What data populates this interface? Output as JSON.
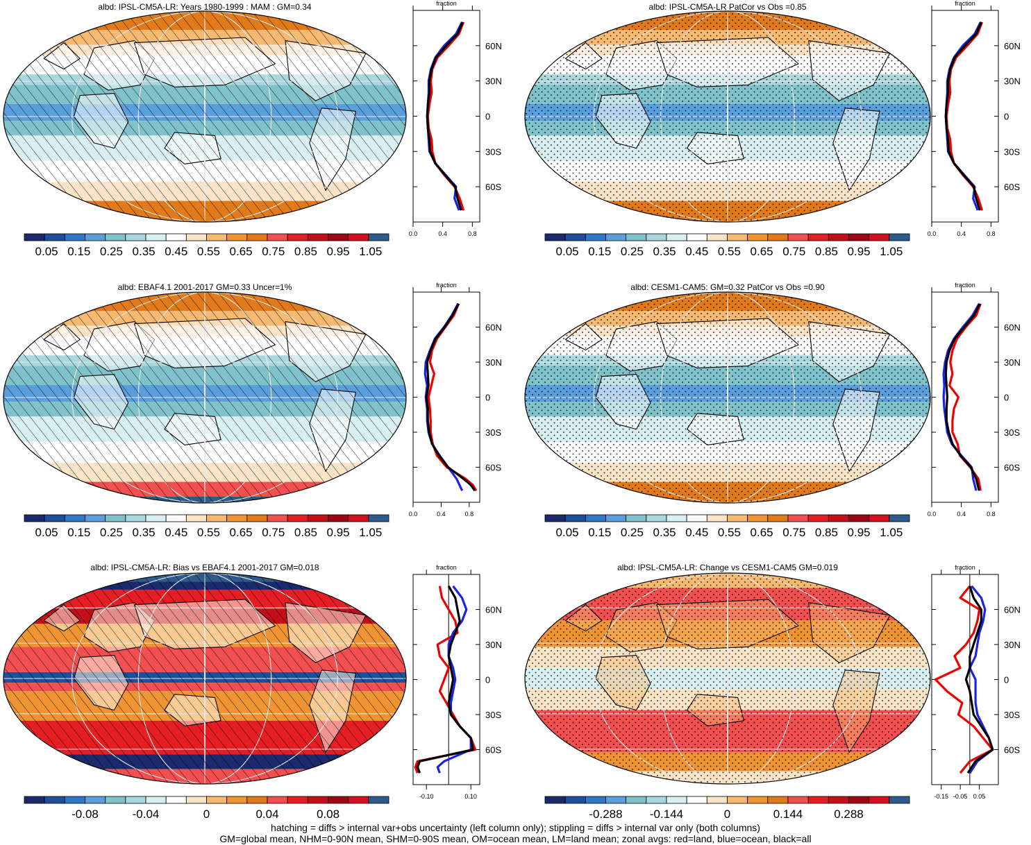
{
  "colors": {
    "scale": [
      "#1a2a6c",
      "#1f4e9a",
      "#2f78c8",
      "#5a9fdc",
      "#7fc2c9",
      "#a8d8dd",
      "#d9f0f2",
      "#ffffff",
      "#fbe3c6",
      "#f6b972",
      "#ef9432",
      "#e07a1a",
      "#f25050",
      "#e51e24",
      "#c40f18",
      "#9e0614",
      "#d41020",
      "#2c5b8c"
    ],
    "red_line": "#ee0000",
    "blue_line": "#1a22e6",
    "black_line": "#000000"
  },
  "footer": {
    "line1": "hatching = diffs > internal var+obs uncertainty (left column only); stippling = diffs > internal var only (both columns)",
    "line2": "GM=global mean, NHM=0-90N mean, SHM=0-90S mean, OM=ocean mean, LM=land mean; zonal avgs: red=land, blue=ocean, black=all"
  },
  "chart_data": [
    {
      "type": "heatmap",
      "title": "albd: IPSL-CM5A-LR: Years 1980-1999 : MAM : GM=0.34",
      "pattern": "hatching",
      "colorbar_labels": [
        "0.05",
        "0.15",
        "0.25",
        "0.35",
        "0.45",
        "0.55",
        "0.65",
        "0.75",
        "0.85",
        "0.95",
        "1.05"
      ],
      "lat_ticks": [
        "60N",
        "30N",
        "0",
        "30S",
        "60S"
      ],
      "zonal_profile": {
        "xlabel": "fraction",
        "x_ticks": [
          "0.0",
          "0.4",
          "0.8"
        ],
        "xlim": [
          0.0,
          0.9
        ],
        "lat": [
          80,
          70,
          60,
          50,
          40,
          30,
          20,
          10,
          0,
          -10,
          -20,
          -30,
          -40,
          -50,
          -60,
          -70,
          -80
        ],
        "land": [
          0.68,
          0.62,
          0.48,
          0.33,
          0.26,
          0.24,
          0.25,
          0.22,
          0.2,
          0.21,
          0.25,
          0.26,
          0.3,
          0.42,
          0.56,
          0.63,
          0.68
        ],
        "ocean": [
          0.66,
          0.58,
          0.42,
          0.3,
          0.24,
          0.21,
          0.21,
          0.2,
          0.19,
          0.2,
          0.21,
          0.22,
          0.3,
          0.44,
          0.58,
          0.56,
          0.62
        ],
        "all": [
          0.67,
          0.6,
          0.45,
          0.31,
          0.25,
          0.22,
          0.22,
          0.2,
          0.19,
          0.2,
          0.22,
          0.23,
          0.3,
          0.43,
          0.57,
          0.6,
          0.65
        ]
      }
    },
    {
      "type": "heatmap",
      "title": "albd: IPSL-CM5A-LR PatCor vs Obs =0.85",
      "pattern": "stippling",
      "colorbar_labels": [
        "0.05",
        "0.15",
        "0.25",
        "0.35",
        "0.45",
        "0.55",
        "0.65",
        "0.75",
        "0.85",
        "0.95",
        "1.05"
      ],
      "lat_ticks": [
        "60N",
        "30N",
        "0",
        "30S",
        "60S"
      ],
      "zonal_profile": {
        "xlabel": "fraction",
        "x_ticks": [
          "0.0",
          "0.4",
          "0.8"
        ],
        "xlim": [
          0.0,
          0.9
        ],
        "lat": [
          80,
          70,
          60,
          50,
          40,
          30,
          20,
          10,
          0,
          -10,
          -20,
          -30,
          -40,
          -50,
          -60,
          -70,
          -80
        ],
        "land": [
          0.68,
          0.62,
          0.48,
          0.33,
          0.26,
          0.24,
          0.25,
          0.22,
          0.2,
          0.21,
          0.25,
          0.26,
          0.3,
          0.42,
          0.56,
          0.63,
          0.68
        ],
        "ocean": [
          0.66,
          0.58,
          0.42,
          0.3,
          0.24,
          0.21,
          0.21,
          0.2,
          0.19,
          0.2,
          0.21,
          0.22,
          0.3,
          0.44,
          0.58,
          0.56,
          0.62
        ],
        "all": [
          0.67,
          0.6,
          0.45,
          0.31,
          0.25,
          0.22,
          0.22,
          0.2,
          0.19,
          0.2,
          0.22,
          0.23,
          0.3,
          0.43,
          0.57,
          0.6,
          0.65
        ]
      }
    },
    {
      "type": "heatmap",
      "title": "albd: EBAF4.1 2001-2017 GM=0.33 Uncer=1%",
      "pattern": "hatching",
      "colorbar_labels": [
        "0.05",
        "0.15",
        "0.25",
        "0.35",
        "0.45",
        "0.55",
        "0.65",
        "0.75",
        "0.85",
        "0.95",
        "1.05"
      ],
      "lat_ticks": [
        "60N",
        "30N",
        "0",
        "30S",
        "60S"
      ],
      "zonal_profile": {
        "xlabel": "fraction",
        "x_ticks": [
          "0.0",
          "0.4",
          "0.8"
        ],
        "xlim": [
          0.0,
          0.95
        ],
        "lat": [
          80,
          70,
          60,
          50,
          40,
          30,
          20,
          10,
          0,
          -10,
          -20,
          -30,
          -40,
          -50,
          -60,
          -70,
          -75,
          -80
        ],
        "land": [
          0.65,
          0.58,
          0.46,
          0.34,
          0.27,
          0.24,
          0.3,
          0.26,
          0.22,
          0.24,
          0.25,
          0.25,
          0.28,
          0.34,
          0.48,
          0.75,
          0.85,
          0.9
        ],
        "ocean": [
          0.64,
          0.55,
          0.44,
          0.31,
          0.24,
          0.18,
          0.17,
          0.2,
          0.18,
          0.2,
          0.2,
          0.22,
          0.27,
          0.38,
          0.5,
          0.62,
          0.66,
          0.7
        ],
        "all": [
          0.65,
          0.56,
          0.45,
          0.32,
          0.25,
          0.2,
          0.21,
          0.22,
          0.19,
          0.21,
          0.21,
          0.23,
          0.27,
          0.37,
          0.5,
          0.72,
          0.82,
          0.88
        ]
      }
    },
    {
      "type": "heatmap",
      "title": "albd: CESM1-CAM5: GM=0.32 PatCor vs Obs =0.90",
      "pattern": "stippling",
      "colorbar_labels": [
        "0.05",
        "0.15",
        "0.25",
        "0.35",
        "0.45",
        "0.55",
        "0.65",
        "0.75",
        "0.85",
        "0.95",
        "1.05"
      ],
      "lat_ticks": [
        "60N",
        "30N",
        "0",
        "30S",
        "60S"
      ],
      "zonal_profile": {
        "xlabel": "fraction",
        "x_ticks": [
          "0.0",
          "0.4",
          "0.8"
        ],
        "xlim": [
          0.0,
          0.9
        ],
        "lat": [
          80,
          70,
          60,
          50,
          40,
          30,
          20,
          10,
          0,
          -10,
          -20,
          -30,
          -40,
          -50,
          -60,
          -70,
          -80
        ],
        "land": [
          0.66,
          0.6,
          0.46,
          0.34,
          0.28,
          0.25,
          0.28,
          0.24,
          0.36,
          0.3,
          0.28,
          0.28,
          0.35,
          0.38,
          0.52,
          0.63,
          0.66
        ],
        "ocean": [
          0.64,
          0.55,
          0.42,
          0.3,
          0.22,
          0.18,
          0.16,
          0.17,
          0.16,
          0.17,
          0.19,
          0.21,
          0.27,
          0.4,
          0.54,
          0.56,
          0.6
        ],
        "all": [
          0.65,
          0.57,
          0.44,
          0.31,
          0.24,
          0.2,
          0.19,
          0.2,
          0.21,
          0.2,
          0.2,
          0.23,
          0.28,
          0.39,
          0.53,
          0.6,
          0.64
        ]
      }
    },
    {
      "type": "heatmap",
      "title": "albd: IPSL-CM5A-LR: Bias vs EBAF4.1 2001-2017 GM=0.018",
      "pattern": "hatching",
      "colorbar_labels": [
        "-0.08",
        "-0.04",
        "0",
        "0.04",
        "0.08"
      ],
      "lat_ticks": [
        "60N",
        "30N",
        "0",
        "30S",
        "60S"
      ],
      "zonal_profile": {
        "xlabel": "fraction",
        "x_ticks": [
          "-0.10",
          "0.10"
        ],
        "xlim": [
          -0.16,
          0.14
        ],
        "lat": [
          80,
          70,
          60,
          50,
          40,
          30,
          20,
          10,
          0,
          -10,
          -20,
          -30,
          -40,
          -50,
          -60,
          -70,
          -75,
          -80
        ],
        "land": [
          -0.04,
          -0.03,
          0.0,
          0.03,
          0.04,
          -0.05,
          -0.04,
          0.0,
          -0.02,
          -0.04,
          -0.01,
          0.02,
          0.05,
          0.1,
          0.12,
          -0.14,
          -0.15,
          -0.14
        ],
        "ocean": [
          0.02,
          0.06,
          0.08,
          0.06,
          0.02,
          0.0,
          0.0,
          0.02,
          0.03,
          0.02,
          0.01,
          0.01,
          0.05,
          0.1,
          0.1,
          -0.02,
          -0.05,
          -0.04
        ],
        "all": [
          0.0,
          0.03,
          0.04,
          0.05,
          0.03,
          0.01,
          0.0,
          0.01,
          0.02,
          0.01,
          0.0,
          0.01,
          0.05,
          0.1,
          0.11,
          -0.13,
          -0.14,
          -0.13
        ]
      }
    },
    {
      "type": "heatmap",
      "title": "albd: IPSL-CM5A-LR: Change vs CESM1-CAM5 GM=0.019",
      "pattern": "stippling",
      "colorbar_labels": [
        "-0.288",
        "-0.144",
        "0",
        "0.144",
        "0.288"
      ],
      "lat_ticks": [
        "60N",
        "30N",
        "0",
        "30S",
        "60S"
      ],
      "zonal_profile": {
        "xlabel": "fraction",
        "x_ticks": [
          "-0.15",
          "-0.05",
          "0.05"
        ],
        "xlim": [
          -0.2,
          0.15
        ],
        "lat": [
          80,
          70,
          60,
          50,
          40,
          30,
          20,
          10,
          0,
          -10,
          -20,
          -30,
          -40,
          -50,
          -60,
          -70,
          -80
        ],
        "land": [
          0.0,
          -0.05,
          0.05,
          0.04,
          0.02,
          -0.02,
          -0.08,
          -0.05,
          -0.18,
          -0.12,
          -0.04,
          -0.06,
          0.02,
          0.07,
          0.12,
          0.0,
          -0.05
        ],
        "ocean": [
          0.01,
          0.06,
          0.08,
          0.07,
          0.05,
          0.04,
          0.03,
          0.0,
          0.03,
          0.03,
          0.03,
          0.04,
          0.07,
          0.1,
          0.12,
          0.04,
          0.0
        ],
        "all": [
          0.0,
          0.02,
          0.06,
          0.06,
          0.04,
          0.02,
          0.0,
          0.0,
          -0.02,
          0.0,
          0.01,
          0.02,
          0.06,
          0.1,
          0.12,
          0.03,
          -0.01
        ]
      }
    }
  ]
}
